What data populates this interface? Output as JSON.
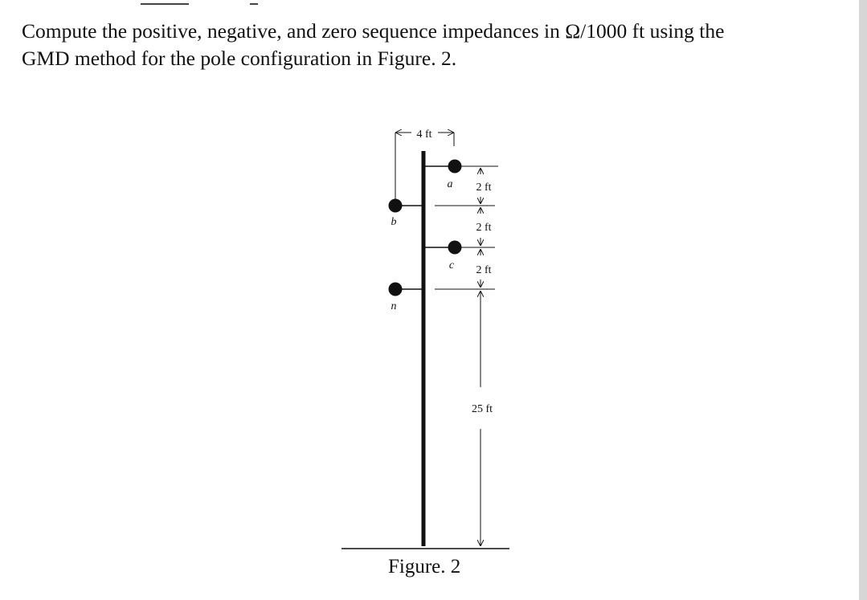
{
  "question": {
    "line1": "Compute the positive, negative, and zero sequence impedances in Ω/1000 ft using the",
    "line2": "GMD method for the pole configuration in Figure. 2."
  },
  "figure": {
    "top_dimension": "4 ft",
    "conductor_labels": {
      "a": "a",
      "b": "b",
      "c": "c",
      "n": "n"
    },
    "spacing_labels": [
      "2 ft",
      "2 ft",
      "2 ft"
    ],
    "height_label": "25 ft",
    "caption": "Figure. 2"
  }
}
